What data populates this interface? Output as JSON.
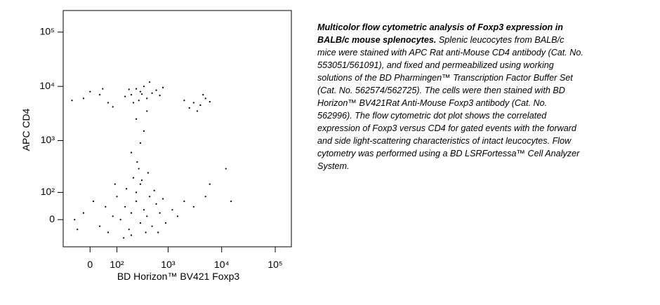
{
  "chart_data": {
    "type": "scatter",
    "x_label": "BD Horizon™ BV421 Foxp3",
    "y_label": "APC CD4",
    "xscale": "biexponential",
    "yscale": "biexponential",
    "xlim": [
      -100,
      200000
    ],
    "ylim": [
      -100,
      250000
    ],
    "xticks": [
      0,
      {
        "value": 100,
        "label": "10²"
      },
      {
        "value": 1000,
        "label": "10³"
      },
      {
        "value": 10000,
        "label": "10⁴"
      },
      {
        "value": 100000,
        "label": "10⁵"
      }
    ],
    "yticks": [
      0,
      {
        "value": 100,
        "label": "10²"
      },
      {
        "value": 1000,
        "label": "10³"
      },
      {
        "value": 10000,
        "label": "10⁴"
      },
      {
        "value": 100000,
        "label": "10⁵"
      }
    ],
    "color": "#000000",
    "x": [
      200,
      300,
      150,
      400,
      250,
      500,
      120,
      350,
      600,
      180,
      80,
      50,
      30,
      -20,
      -50,
      700,
      900,
      1200,
      250,
      300,
      200,
      450,
      100,
      160,
      60,
      10,
      -40,
      800,
      550,
      380,
      220,
      280,
      320,
      140,
      90,
      650,
      1500,
      2000,
      420,
      260,
      200,
      300,
      350,
      250,
      400,
      3000,
      5000,
      15000,
      12000,
      6000,
      200,
      300,
      400,
      250,
      500,
      150,
      350,
      600,
      280,
      450,
      180,
      700,
      320,
      220,
      800,
      3000,
      4000,
      5000,
      3500,
      6000,
      2500,
      4500,
      2000,
      -20,
      30,
      60,
      0,
      -60,
      80,
      40
    ],
    "y": [
      20,
      -10,
      40,
      10,
      60,
      -20,
      0,
      30,
      50,
      -30,
      10,
      40,
      -20,
      20,
      0,
      20,
      -10,
      30,
      100,
      150,
      -50,
      80,
      80,
      120,
      -40,
      60,
      -30,
      70,
      110,
      -40,
      200,
      300,
      180,
      -60,
      150,
      -40,
      10,
      60,
      250,
      400,
      600,
      900,
      1500,
      2500,
      3500,
      40,
      80,
      60,
      300,
      150,
      7000,
      8000,
      6000,
      9000,
      7500,
      6500,
      10000,
      8500,
      5500,
      12000,
      8800,
      6800,
      7200,
      5000,
      9500,
      5000,
      4500,
      6000,
      3500,
      5200,
      4000,
      7000,
      5500,
      6000,
      7000,
      5000,
      8000,
      5500,
      4200,
      9000
    ]
  },
  "caption": {
    "title": "Multicolor flow cytometric analysis of Foxp3 expression in BALB/c mouse splenocytes.",
    "body": "Splenic leucocytes from BALB/c mice were stained with APC Rat anti-Mouse CD4 antibody (Cat. No. 553051/561091), and fixed and permeabilized using working solutions of the BD Pharmingen™ Transcription Factor Buffer Set (Cat. No. 562574/562725). The cells were then stained with BD Horizon™ BV421Rat Anti-Mouse Foxp3 antibody (Cat. No. 562996). The flow cytometric dot plot shows the correlated expression of Foxp3 versus CD4 for gated events with the forward and side light-scattering characteristics of intact leucocytes. Flow cytometry was performed using a BD LSRFortessa™ Cell Analyzer System."
  }
}
